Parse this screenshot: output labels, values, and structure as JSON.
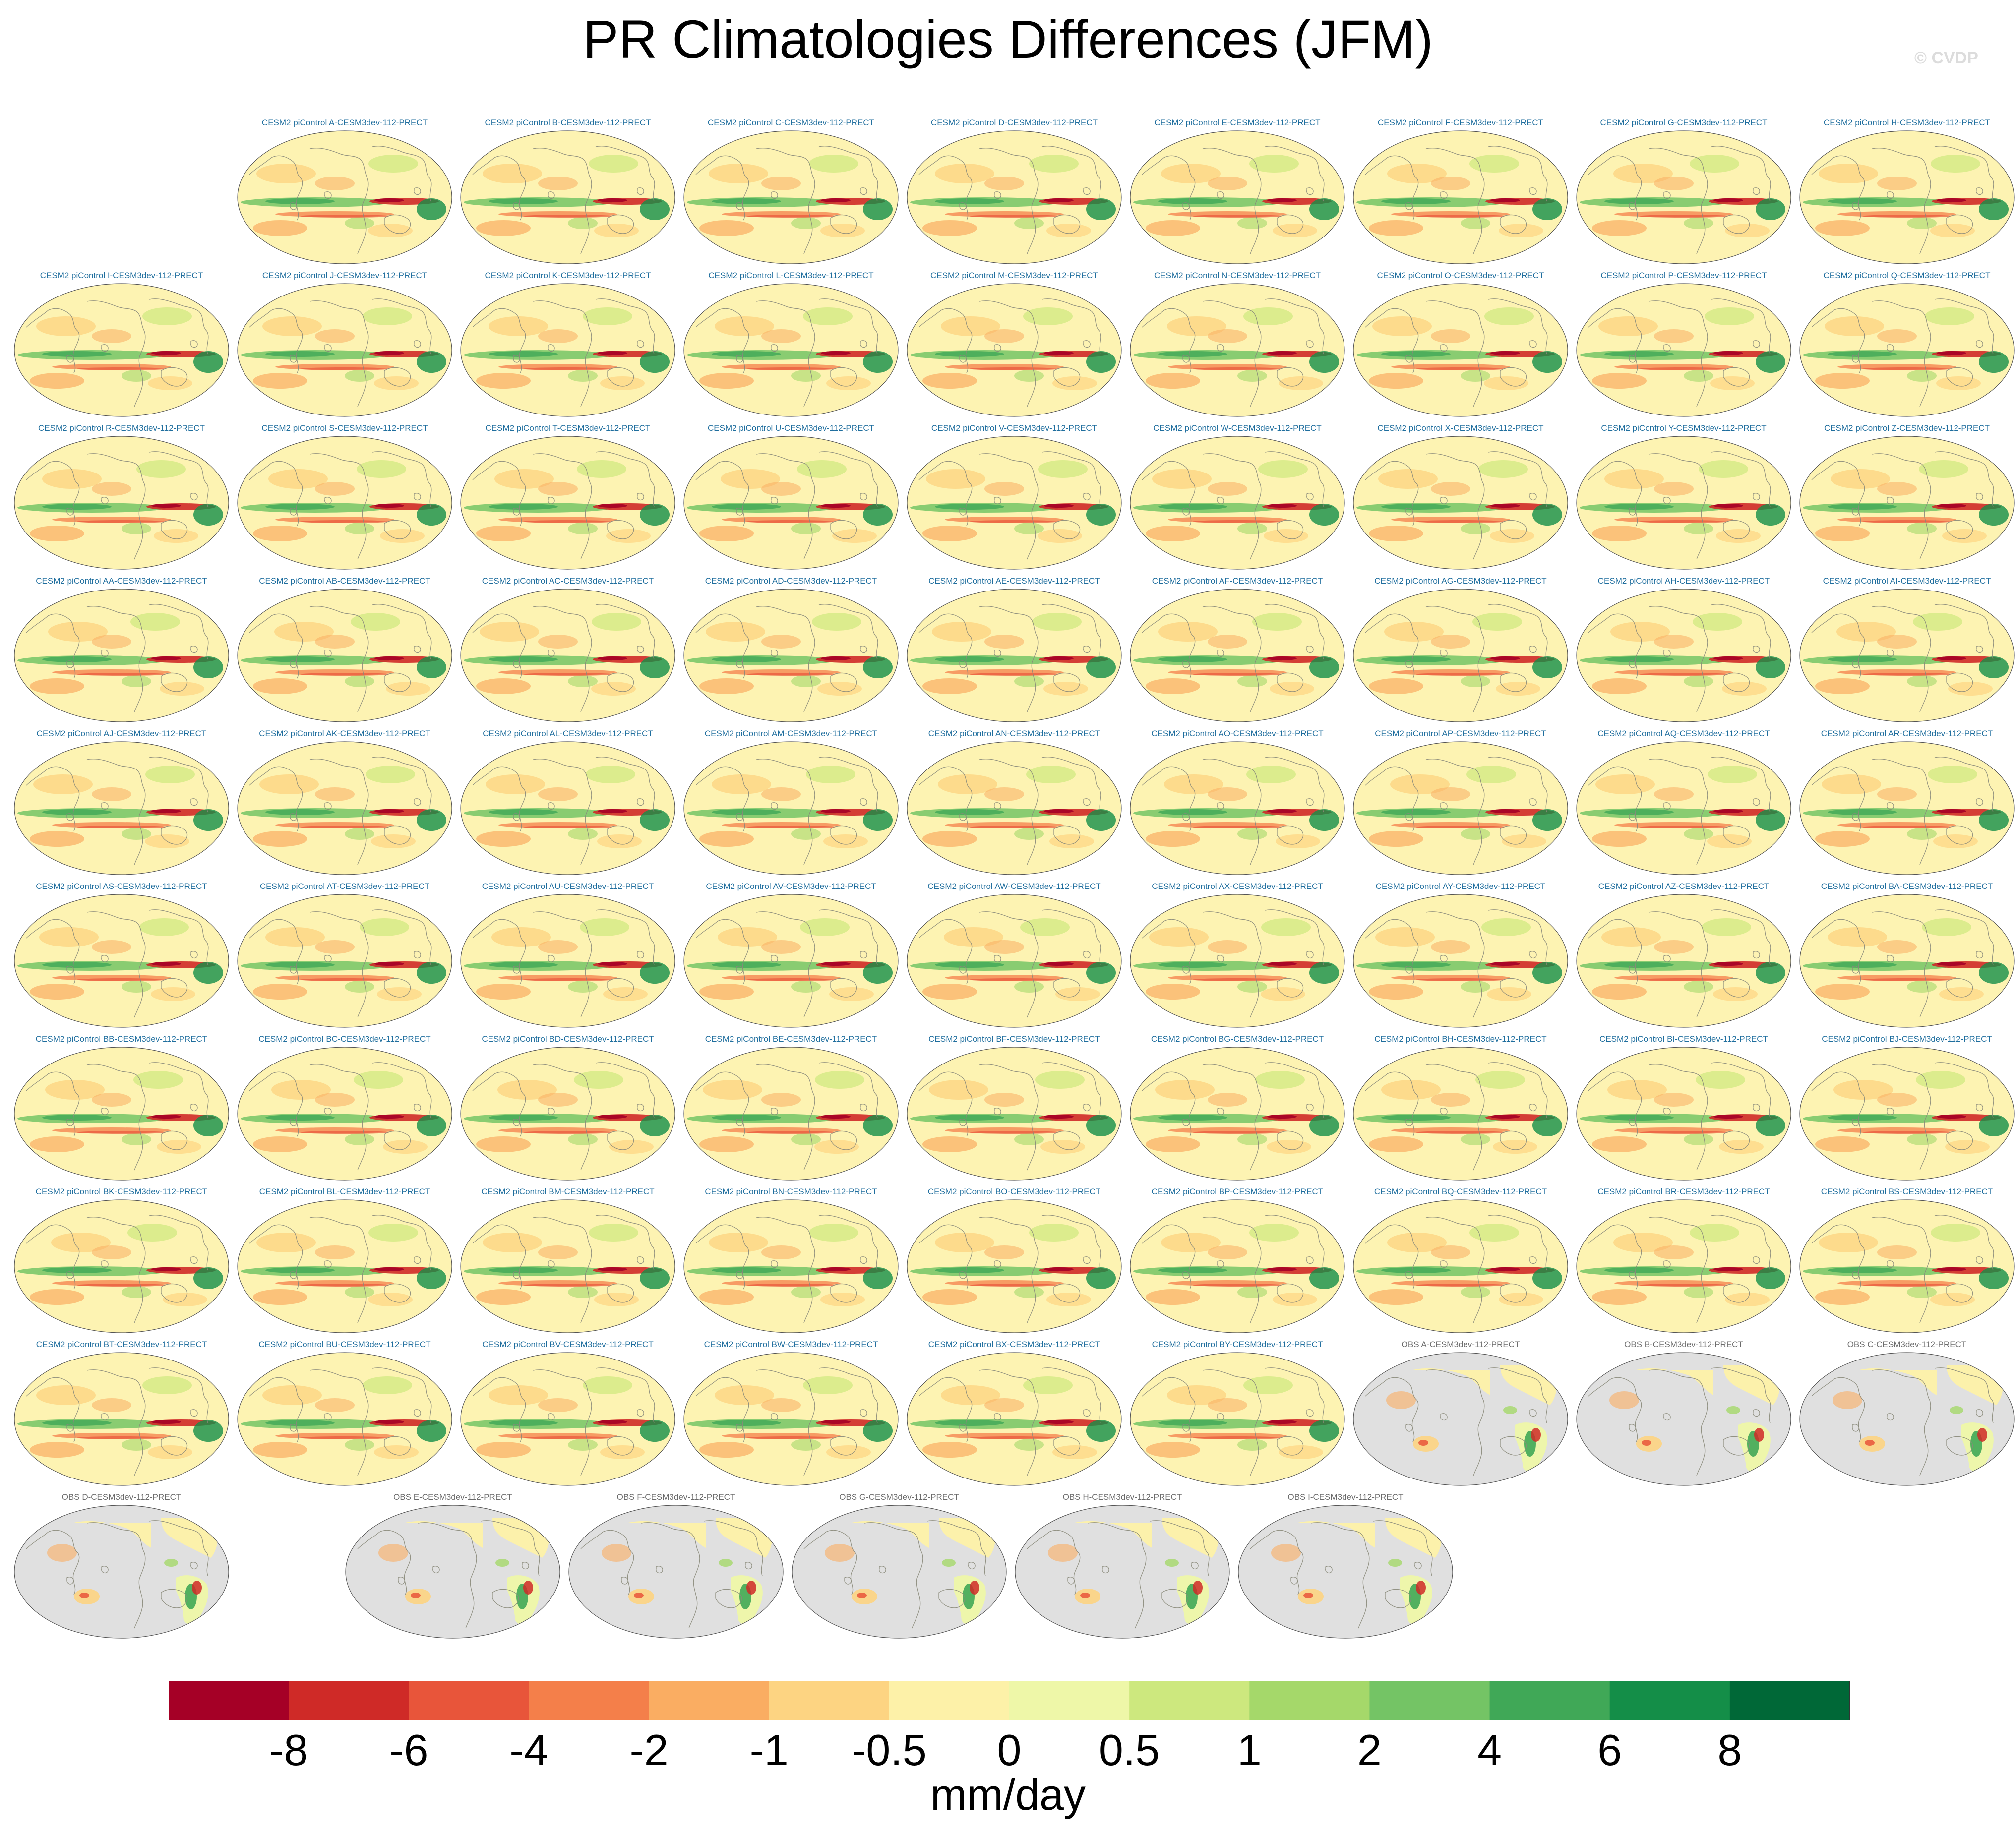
{
  "figure": {
    "title": "PR Climatologies Differences (JFM)",
    "credit": "© CVDP"
  },
  "panels": [
    {
      "label": "CESM2 piControl A-CESM3dev-112-PRECT",
      "kind": "model"
    },
    {
      "label": "CESM2 piControl B-CESM3dev-112-PRECT",
      "kind": "model"
    },
    {
      "label": "CESM2 piControl C-CESM3dev-112-PRECT",
      "kind": "model"
    },
    {
      "label": "CESM2 piControl D-CESM3dev-112-PRECT",
      "kind": "model"
    },
    {
      "label": "CESM2 piControl E-CESM3dev-112-PRECT",
      "kind": "model"
    },
    {
      "label": "CESM2 piControl F-CESM3dev-112-PRECT",
      "kind": "model"
    },
    {
      "label": "CESM2 piControl G-CESM3dev-112-PRECT",
      "kind": "model"
    },
    {
      "label": "CESM2 piControl H-CESM3dev-112-PRECT",
      "kind": "model"
    },
    {
      "label": "CESM2 piControl I-CESM3dev-112-PRECT",
      "kind": "model"
    },
    {
      "label": "CESM2 piControl J-CESM3dev-112-PRECT",
      "kind": "model"
    },
    {
      "label": "CESM2 piControl K-CESM3dev-112-PRECT",
      "kind": "model"
    },
    {
      "label": "CESM2 piControl L-CESM3dev-112-PRECT",
      "kind": "model"
    },
    {
      "label": "CESM2 piControl M-CESM3dev-112-PRECT",
      "kind": "model"
    },
    {
      "label": "CESM2 piControl N-CESM3dev-112-PRECT",
      "kind": "model"
    },
    {
      "label": "CESM2 piControl O-CESM3dev-112-PRECT",
      "kind": "model"
    },
    {
      "label": "CESM2 piControl P-CESM3dev-112-PRECT",
      "kind": "model"
    },
    {
      "label": "CESM2 piControl Q-CESM3dev-112-PRECT",
      "kind": "model"
    },
    {
      "label": "CESM2 piControl R-CESM3dev-112-PRECT",
      "kind": "model"
    },
    {
      "label": "CESM2 piControl S-CESM3dev-112-PRECT",
      "kind": "model"
    },
    {
      "label": "CESM2 piControl T-CESM3dev-112-PRECT",
      "kind": "model"
    },
    {
      "label": "CESM2 piControl U-CESM3dev-112-PRECT",
      "kind": "model"
    },
    {
      "label": "CESM2 piControl V-CESM3dev-112-PRECT",
      "kind": "model"
    },
    {
      "label": "CESM2 piControl W-CESM3dev-112-PRECT",
      "kind": "model"
    },
    {
      "label": "CESM2 piControl X-CESM3dev-112-PRECT",
      "kind": "model"
    },
    {
      "label": "CESM2 piControl Y-CESM3dev-112-PRECT",
      "kind": "model"
    },
    {
      "label": "CESM2 piControl Z-CESM3dev-112-PRECT",
      "kind": "model"
    },
    {
      "label": "CESM2 piControl AA-CESM3dev-112-PRECT",
      "kind": "model"
    },
    {
      "label": "CESM2 piControl AB-CESM3dev-112-PRECT",
      "kind": "model"
    },
    {
      "label": "CESM2 piControl AC-CESM3dev-112-PRECT",
      "kind": "model"
    },
    {
      "label": "CESM2 piControl AD-CESM3dev-112-PRECT",
      "kind": "model"
    },
    {
      "label": "CESM2 piControl AE-CESM3dev-112-PRECT",
      "kind": "model"
    },
    {
      "label": "CESM2 piControl AF-CESM3dev-112-PRECT",
      "kind": "model"
    },
    {
      "label": "CESM2 piControl AG-CESM3dev-112-PRECT",
      "kind": "model"
    },
    {
      "label": "CESM2 piControl AH-CESM3dev-112-PRECT",
      "kind": "model"
    },
    {
      "label": "CESM2 piControl AI-CESM3dev-112-PRECT",
      "kind": "model"
    },
    {
      "label": "CESM2 piControl AJ-CESM3dev-112-PRECT",
      "kind": "model"
    },
    {
      "label": "CESM2 piControl AK-CESM3dev-112-PRECT",
      "kind": "model"
    },
    {
      "label": "CESM2 piControl AL-CESM3dev-112-PRECT",
      "kind": "model"
    },
    {
      "label": "CESM2 piControl AM-CESM3dev-112-PRECT",
      "kind": "model"
    },
    {
      "label": "CESM2 piControl AN-CESM3dev-112-PRECT",
      "kind": "model"
    },
    {
      "label": "CESM2 piControl AO-CESM3dev-112-PRECT",
      "kind": "model"
    },
    {
      "label": "CESM2 piControl AP-CESM3dev-112-PRECT",
      "kind": "model"
    },
    {
      "label": "CESM2 piControl AQ-CESM3dev-112-PRECT",
      "kind": "model"
    },
    {
      "label": "CESM2 piControl AR-CESM3dev-112-PRECT",
      "kind": "model"
    },
    {
      "label": "CESM2 piControl AS-CESM3dev-112-PRECT",
      "kind": "model"
    },
    {
      "label": "CESM2 piControl AT-CESM3dev-112-PRECT",
      "kind": "model"
    },
    {
      "label": "CESM2 piControl AU-CESM3dev-112-PRECT",
      "kind": "model"
    },
    {
      "label": "CESM2 piControl AV-CESM3dev-112-PRECT",
      "kind": "model"
    },
    {
      "label": "CESM2 piControl AW-CESM3dev-112-PRECT",
      "kind": "model"
    },
    {
      "label": "CESM2 piControl AX-CESM3dev-112-PRECT",
      "kind": "model"
    },
    {
      "label": "CESM2 piControl AY-CESM3dev-112-PRECT",
      "kind": "model"
    },
    {
      "label": "CESM2 piControl AZ-CESM3dev-112-PRECT",
      "kind": "model"
    },
    {
      "label": "CESM2 piControl BA-CESM3dev-112-PRECT",
      "kind": "model"
    },
    {
      "label": "CESM2 piControl BB-CESM3dev-112-PRECT",
      "kind": "model"
    },
    {
      "label": "CESM2 piControl BC-CESM3dev-112-PRECT",
      "kind": "model"
    },
    {
      "label": "CESM2 piControl BD-CESM3dev-112-PRECT",
      "kind": "model"
    },
    {
      "label": "CESM2 piControl BE-CESM3dev-112-PRECT",
      "kind": "model"
    },
    {
      "label": "CESM2 piControl BF-CESM3dev-112-PRECT",
      "kind": "model"
    },
    {
      "label": "CESM2 piControl BG-CESM3dev-112-PRECT",
      "kind": "model"
    },
    {
      "label": "CESM2 piControl BH-CESM3dev-112-PRECT",
      "kind": "model"
    },
    {
      "label": "CESM2 piControl BI-CESM3dev-112-PRECT",
      "kind": "model"
    },
    {
      "label": "CESM2 piControl BJ-CESM3dev-112-PRECT",
      "kind": "model"
    },
    {
      "label": "CESM2 piControl BK-CESM3dev-112-PRECT",
      "kind": "model"
    },
    {
      "label": "CESM2 piControl BL-CESM3dev-112-PRECT",
      "kind": "model"
    },
    {
      "label": "CESM2 piControl BM-CESM3dev-112-PRECT",
      "kind": "model"
    },
    {
      "label": "CESM2 piControl BN-CESM3dev-112-PRECT",
      "kind": "model"
    },
    {
      "label": "CESM2 piControl BO-CESM3dev-112-PRECT",
      "kind": "model"
    },
    {
      "label": "CESM2 piControl BP-CESM3dev-112-PRECT",
      "kind": "model"
    },
    {
      "label": "CESM2 piControl BQ-CESM3dev-112-PRECT",
      "kind": "model"
    },
    {
      "label": "CESM2 piControl BR-CESM3dev-112-PRECT",
      "kind": "model"
    },
    {
      "label": "CESM2 piControl BS-CESM3dev-112-PRECT",
      "kind": "model"
    },
    {
      "label": "CESM2 piControl BT-CESM3dev-112-PRECT",
      "kind": "model"
    },
    {
      "label": "CESM2 piControl BU-CESM3dev-112-PRECT",
      "kind": "model"
    },
    {
      "label": "CESM2 piControl BV-CESM3dev-112-PRECT",
      "kind": "model"
    },
    {
      "label": "CESM2 piControl BW-CESM3dev-112-PRECT",
      "kind": "model"
    },
    {
      "label": "CESM2 piControl BX-CESM3dev-112-PRECT",
      "kind": "model"
    },
    {
      "label": "CESM2 piControl BY-CESM3dev-112-PRECT",
      "kind": "model"
    },
    {
      "label": "OBS A-CESM3dev-112-PRECT",
      "kind": "obs"
    },
    {
      "label": "OBS B-CESM3dev-112-PRECT",
      "kind": "obs"
    },
    {
      "label": "OBS C-CESM3dev-112-PRECT",
      "kind": "obs"
    },
    {
      "label": "OBS D-CESM3dev-112-PRECT",
      "kind": "obs"
    },
    {
      "label": "OBS E-CESM3dev-112-PRECT",
      "kind": "obs"
    },
    {
      "label": "OBS F-CESM3dev-112-PRECT",
      "kind": "obs"
    },
    {
      "label": "OBS G-CESM3dev-112-PRECT",
      "kind": "obs"
    },
    {
      "label": "OBS H-CESM3dev-112-PRECT",
      "kind": "obs"
    },
    {
      "label": "OBS I-CESM3dev-112-PRECT",
      "kind": "obs"
    }
  ],
  "colorbar": {
    "units": "mm/day",
    "labels": [
      "-8",
      "-6",
      "-4",
      "-2",
      "-1",
      "-0.5",
      "0",
      "0.5",
      "1",
      "2",
      "4",
      "6",
      "8"
    ],
    "colors": [
      "#a50026",
      "#cf2a27",
      "#e8553a",
      "#f47f4a",
      "#faad62",
      "#fdd482",
      "#fdf1a8",
      "#eef7a8",
      "#cde87e",
      "#a5d86a",
      "#74c465",
      "#40a857",
      "#148e48",
      "#006837"
    ]
  },
  "map_colors": {
    "background": "#fdf3b2",
    "land_missing": "#e0e0e0",
    "coastline": "#8a8a7a"
  }
}
